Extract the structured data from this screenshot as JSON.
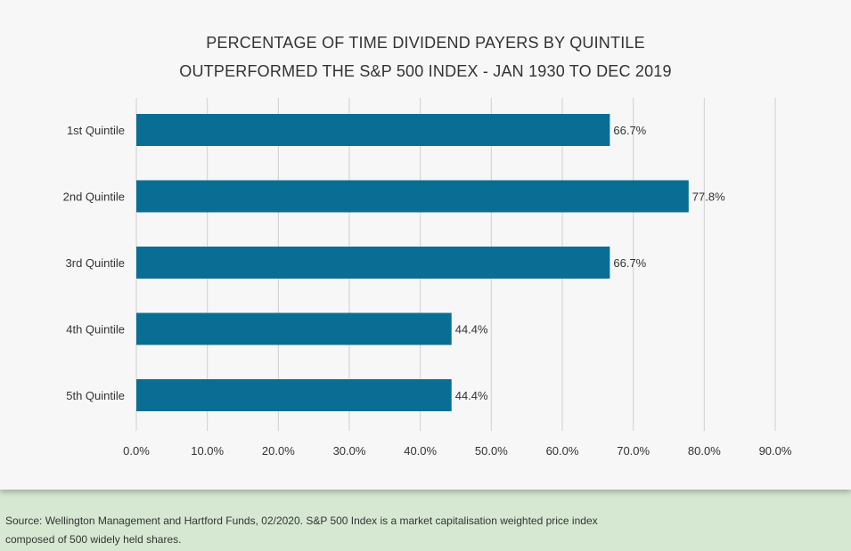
{
  "chart_data": {
    "type": "bar",
    "orientation": "horizontal",
    "title": [
      "PERCENTAGE OF TIME DIVIDEND PAYERS BY QUINTILE",
      "OUTPERFORMED THE S&P 500 INDEX - JAN 1930 TO DEC 2019"
    ],
    "categories": [
      "1st Quintile",
      "2nd Quintile",
      "3rd Quintile",
      "4th Quintile",
      "5th Quintile"
    ],
    "values": [
      66.7,
      77.8,
      66.7,
      44.4,
      44.4
    ],
    "value_labels": [
      "66.7%",
      "77.8%",
      "66.7%",
      "44.4%",
      "44.4%"
    ],
    "xlim": [
      0,
      90
    ],
    "x_ticks": [
      "0.0%",
      "10.0%",
      "20.0%",
      "30.0%",
      "40.0%",
      "50.0%",
      "60.0%",
      "70.0%",
      "80.0%",
      "90.0%"
    ],
    "grid": "vertical",
    "bar_color": "#0a6e94",
    "xlabel": "",
    "ylabel": ""
  },
  "footer": {
    "source_line1": "Source: Wellington Management and Hartford Funds, 02/2020. S&P 500 Index is a market capitalisation weighted price index",
    "source_line2": "composed of 500 widely held shares."
  }
}
